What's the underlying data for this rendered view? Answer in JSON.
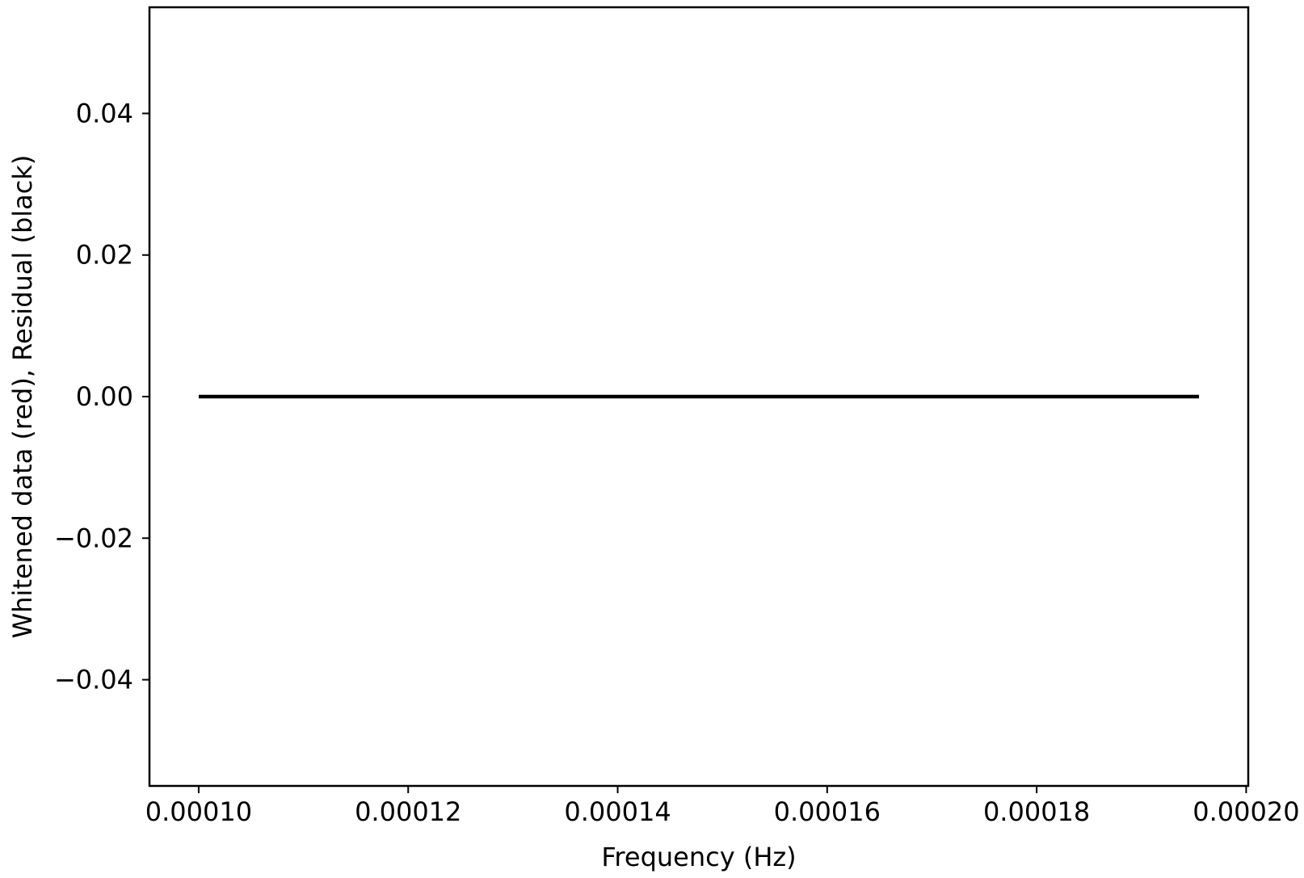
{
  "chart_data": {
    "type": "line",
    "title": "",
    "xlabel": "Frequency (Hz)",
    "ylabel": "Whitened data (red), Residual (black)",
    "xlim": [
      9.53e-05,
      0.0002002
    ],
    "ylim": [
      -0.055,
      0.055
    ],
    "xticks": [
      0.0001,
      0.00012,
      0.00014,
      0.00016,
      0.00018,
      0.0002
    ],
    "xtick_labels": [
      "0.00010",
      "0.00012",
      "0.00014",
      "0.00016",
      "0.00018",
      "0.00020"
    ],
    "yticks": [
      0.04,
      0.02,
      0.0,
      -0.02,
      -0.04
    ],
    "ytick_labels": [
      "0.04",
      "0.02",
      "0.00",
      "−0.02",
      "−0.04"
    ],
    "grid": false,
    "series": [
      {
        "color": "#000000",
        "x": [
          0.0001,
          0.0001955
        ],
        "y": [
          0.0,
          0.0
        ]
      }
    ]
  }
}
